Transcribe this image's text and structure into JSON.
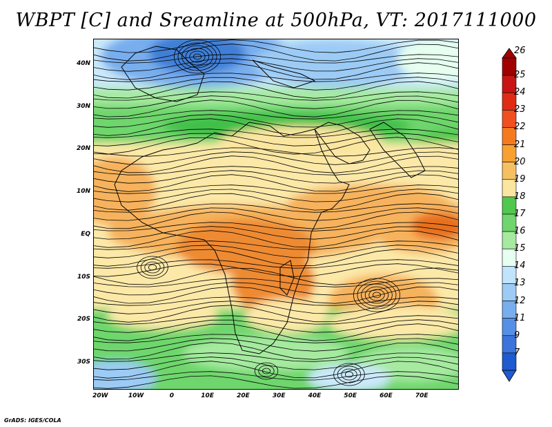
{
  "title": "WBPT [C] and Sreamline at 500hPa, VT: 2017111000",
  "credit": "GrADS: IGES/COLA",
  "map": {
    "lon_range": [
      -22,
      80
    ],
    "lat_range": [
      -36,
      46
    ],
    "lat_ticks": [
      {
        "value": 40,
        "label": "40N"
      },
      {
        "value": 30,
        "label": "30N"
      },
      {
        "value": 20,
        "label": "20N"
      },
      {
        "value": 10,
        "label": "10N"
      },
      {
        "value": 0,
        "label": "EQ"
      },
      {
        "value": -10,
        "label": "10S"
      },
      {
        "value": -20,
        "label": "20S"
      },
      {
        "value": -30,
        "label": "30S"
      }
    ],
    "lon_ticks": [
      {
        "value": -20,
        "label": "20W"
      },
      {
        "value": -10,
        "label": "10W"
      },
      {
        "value": 0,
        "label": "0"
      },
      {
        "value": 10,
        "label": "10E"
      },
      {
        "value": 20,
        "label": "20E"
      },
      {
        "value": 30,
        "label": "30E"
      },
      {
        "value": 40,
        "label": "40E"
      },
      {
        "value": 50,
        "label": "50E"
      },
      {
        "value": 60,
        "label": "60E"
      },
      {
        "value": 70,
        "label": "70E"
      }
    ],
    "field": "wet-bulb potential temperature at 500hPa",
    "overlay": "streamlines"
  },
  "colorbar": {
    "levels": [
      "26",
      "25",
      "24",
      "23",
      "22",
      "21",
      "20",
      "19",
      "18",
      "17",
      "16",
      "15",
      "14",
      "13",
      "12",
      "11",
      "9",
      "7"
    ],
    "colors": [
      "#a00000",
      "#c81414",
      "#e02c14",
      "#f05020",
      "#f57a1e",
      "#f8a030",
      "#f6c060",
      "#fbe6a0",
      "#4fc84e",
      "#6ed66c",
      "#a6eaa0",
      "#e6fff0",
      "#c0e4fb",
      "#9ccbf5",
      "#78aeee",
      "#5590e6",
      "#3a74dc",
      "#1e5ad0"
    ]
  },
  "colors": {
    "ocean_deep_blue": "#3f7fd6",
    "light_blue": "#cbe9fb",
    "green": "#41c04a",
    "light_green": "#8fe08a",
    "yellow": "#fce9a8",
    "orange": "#f6b25c",
    "dark_orange": "#ee8a30"
  }
}
